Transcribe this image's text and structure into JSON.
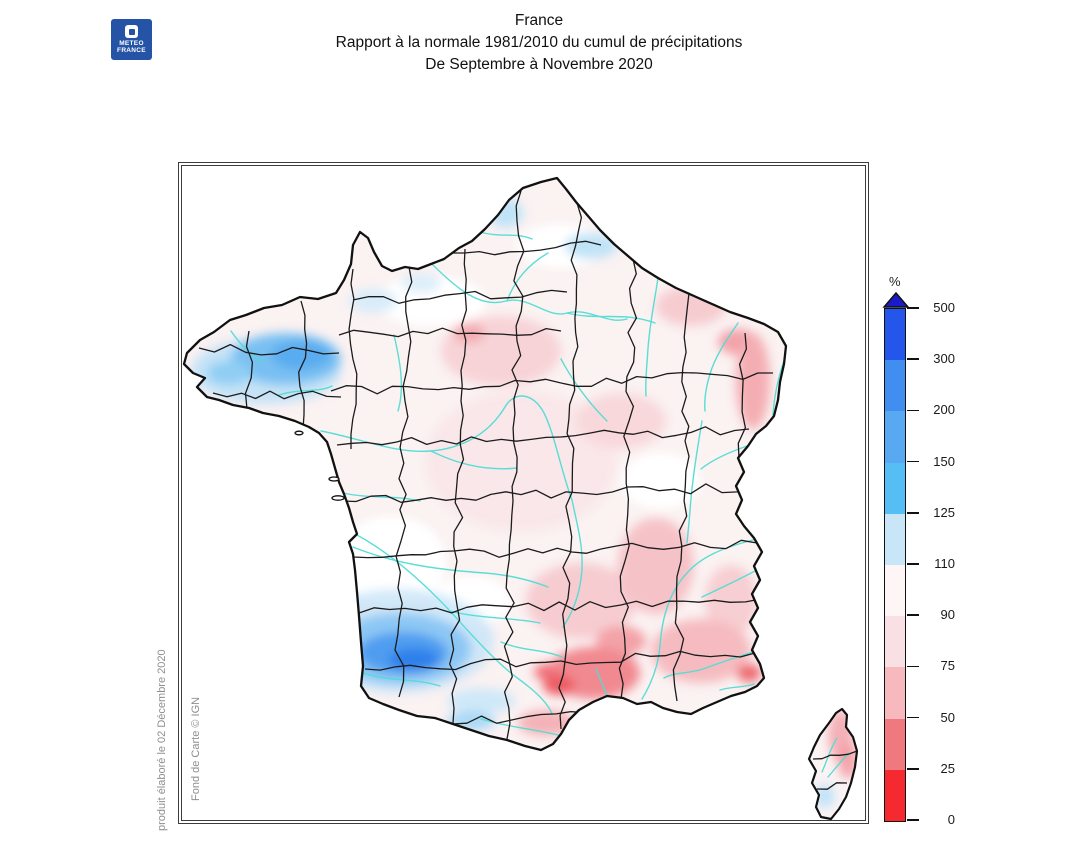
{
  "header": {
    "logo": {
      "line1": "METEO",
      "line2": "FRANCE",
      "bg_color": "#2553A6",
      "mark_color": "#2553A6"
    },
    "title_line1": "France",
    "title_line2": "Rapport à la normale 1981/2010 du cumul de précipitations",
    "title_line3": "De Septembre à Novembre 2020"
  },
  "map": {
    "credit_left": "produit élaboré le 02 Décembre 2020",
    "credit_inner": "Fond de Carte © IGN",
    "border_color": "#111111",
    "river_color": "#52DCD4",
    "base_tint": "#FBF2F2"
  },
  "legend": {
    "unit_label": "%",
    "levels": [
      "500",
      "300",
      "200",
      "150",
      "125",
      "110",
      "90",
      "75",
      "50",
      "25",
      "0"
    ],
    "segment_colors_top_to_bottom": [
      "#2456EC",
      "#3F8EF0",
      "#58A8F2",
      "#55BFF5",
      "#C8E6F8",
      "#FDF5F6",
      "#F9E0E4",
      "#F7B9BE",
      "#F0797F",
      "#F52A30"
    ],
    "arrow_color": "#1A1AC8"
  },
  "chart_data": {
    "type": "heatmap",
    "title": "Rapport à la normale 1981/2010 du cumul de précipitations",
    "subtitle": "De Septembre à Novembre 2020",
    "region_scope": "France",
    "unit": "%",
    "scale_levels": [
      0,
      25,
      50,
      75,
      90,
      110,
      125,
      150,
      200,
      300,
      500
    ],
    "scale_colors_low_to_high": [
      "#F52A30",
      "#F0797F",
      "#F7B9BE",
      "#F9E0E4",
      "#FDF5F6",
      "#C8E6F8",
      "#55BFF5",
      "#58A8F2",
      "#3F8EF0",
      "#2456EC"
    ],
    "above_scale_color": "#1A1AC8",
    "legend_position": "right",
    "notable_regions": [
      {
        "region": "Bretagne nord",
        "value_pct": "125-150"
      },
      {
        "region": "Landes / sud-ouest atlantique",
        "value_pct": "150-200"
      },
      {
        "region": "Nord et Champagne (taches)",
        "value_pct": "110-125"
      },
      {
        "region": "Majorité du territoire",
        "value_pct": "90-110"
      },
      {
        "region": "Sud de l'Île-de-France / Bourgogne",
        "value_pct": "75-90"
      },
      {
        "region": "Alsace / Nord-Est",
        "value_pct": "50-75"
      },
      {
        "region": "Vallée du Rhône / Provence",
        "value_pct": "50-75"
      },
      {
        "region": "Languedoc (Hérault - Gard)",
        "value_pct": "25-50"
      },
      {
        "region": "Corse nord-est",
        "value_pct": "50-75"
      }
    ]
  }
}
